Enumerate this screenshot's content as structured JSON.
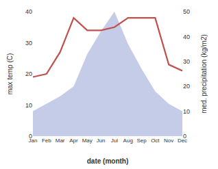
{
  "chart_data": {
    "type": "line",
    "xlabel": "date (month)",
    "ylabel": "max temp (C)",
    "y2label": "med. precipitation (kg/m2)",
    "categories": [
      "Jan",
      "Feb",
      "Mar",
      "Apr",
      "May",
      "Jun",
      "Jul",
      "Aug",
      "Sep",
      "Oct",
      "Nov",
      "Dec"
    ],
    "series": [
      {
        "type": "area",
        "axis": "y2",
        "color": "#c5cce8",
        "values": [
          10,
          13,
          16,
          20,
          33,
          42,
          50,
          37,
          27,
          18,
          13,
          10
        ]
      },
      {
        "type": "line",
        "color": "#c0504d",
        "values": [
          19,
          20,
          27,
          38,
          34,
          34,
          35,
          38,
          38,
          38,
          23,
          21
        ]
      }
    ],
    "ylim": [
      0,
      40
    ],
    "yticks": [
      0,
      10,
      20,
      30,
      40
    ],
    "y2lim": [
      0,
      50
    ],
    "y2ticks": [
      0,
      10,
      20,
      30,
      40,
      50
    ],
    "grid": false
  }
}
